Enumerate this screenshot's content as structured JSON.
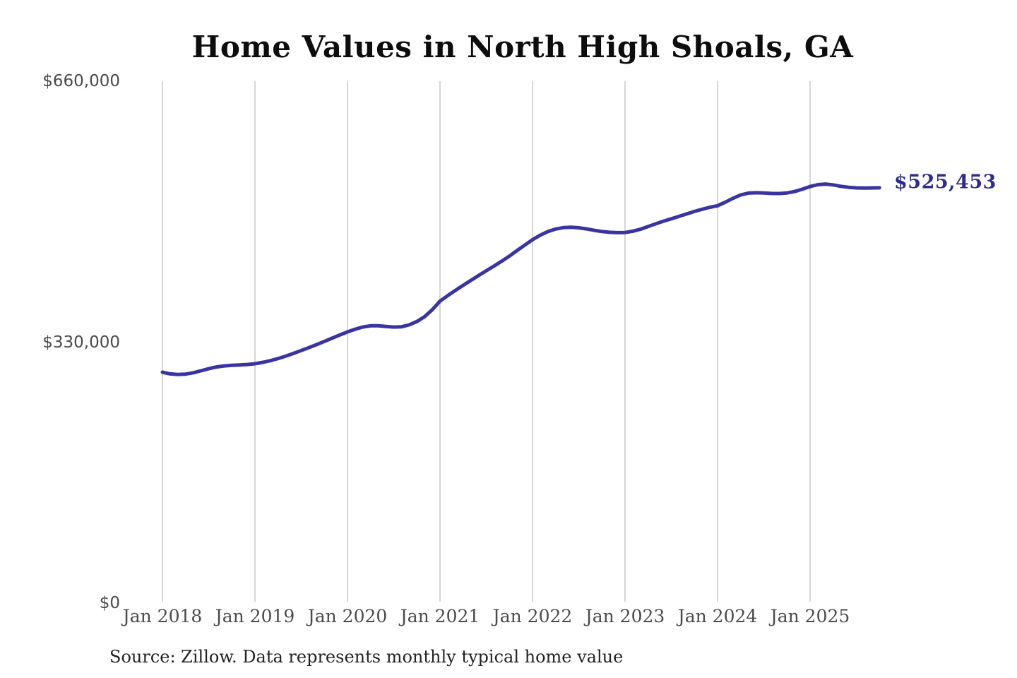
{
  "title": "Home Values in North High Shoals, GA",
  "source_note": "Source: Zillow. Data represents monthly typical home value",
  "end_label": "$525,453",
  "colors": {
    "line": "#3a34a2",
    "end_label_text": "#2e2a8e",
    "gridline": "#c9c9c9",
    "axis_text": "#4a4a4a",
    "title_text": "#0d0d0d",
    "background": "#ffffff"
  },
  "chart_data": {
    "type": "line",
    "title": "Home Values in North High Shoals, GA",
    "xlabel": "",
    "ylabel": "",
    "ylim": [
      0,
      660000
    ],
    "y_tick_values": [
      0,
      330000,
      660000
    ],
    "y_tick_labels": [
      "$0",
      "$330,000",
      "$660,000"
    ],
    "x_tick_labels": [
      "Jan 2018",
      "Jan 2019",
      "Jan 2020",
      "Jan 2021",
      "Jan 2022",
      "Jan 2023",
      "Jan 2024",
      "Jan 2025"
    ],
    "x_tick_month_indices": [
      0,
      12,
      24,
      36,
      48,
      60,
      72,
      84
    ],
    "x_start_month": "Jan 2018",
    "x_end_month": "Oct 2025",
    "grid": "vertical-only",
    "legend": "none",
    "final_value": 525453,
    "final_value_label": "$525,453",
    "series": [
      {
        "name": "Monthly typical home value",
        "values": [
          292500,
          290400,
          289600,
          290100,
          291800,
          294300,
          296900,
          299100,
          300500,
          301200,
          301600,
          302300,
          303200,
          304900,
          307100,
          309800,
          312900,
          316300,
          319900,
          323600,
          327400,
          331400,
          335500,
          339500,
          343400,
          346900,
          349600,
          351100,
          351200,
          350300,
          349500,
          349900,
          352300,
          356600,
          362600,
          371500,
          382300,
          389200,
          395800,
          402200,
          408500,
          414600,
          420600,
          426600,
          432700,
          439200,
          446200,
          453100,
          459900,
          465600,
          470100,
          473300,
          475100,
          475600,
          474900,
          473500,
          471700,
          470200,
          469200,
          468800,
          469000,
          470600,
          473100,
          476500,
          480000,
          483300,
          486300,
          489300,
          492400,
          495500,
          498300,
          500800,
          502800,
          507200,
          512100,
          516400,
          518700,
          519200,
          518800,
          518300,
          518200,
          518900,
          520700,
          523600,
          527000,
          529300,
          530100,
          529100,
          527300,
          526000,
          525300,
          525100,
          525200,
          525453
        ]
      }
    ]
  }
}
